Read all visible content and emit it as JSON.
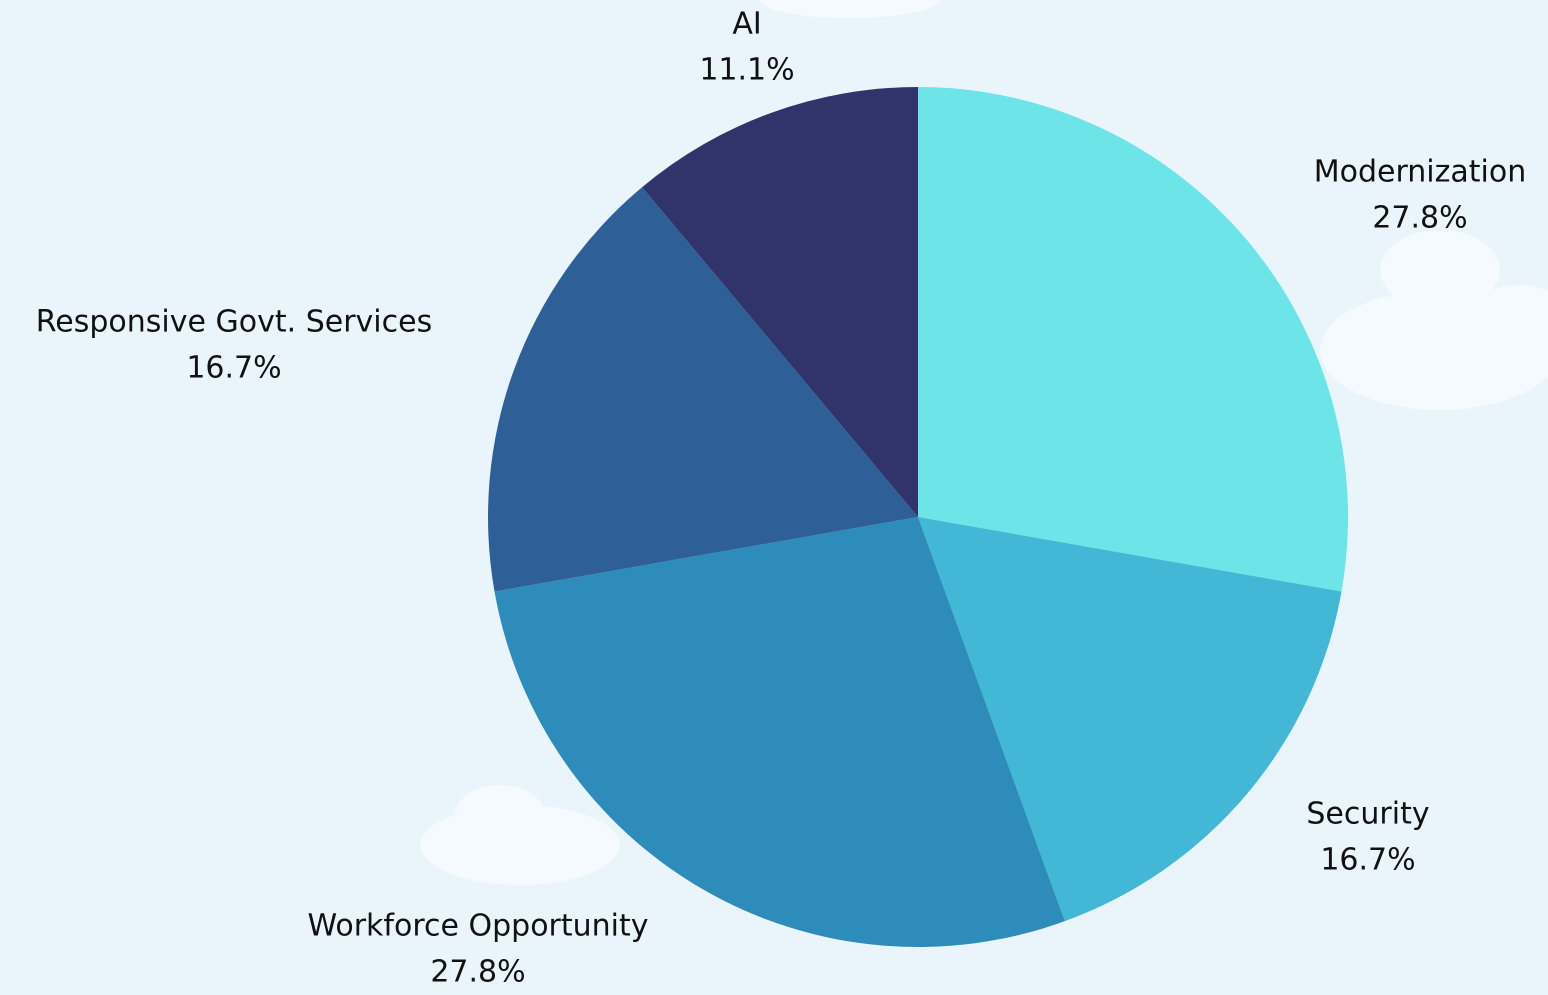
{
  "chart_data": {
    "type": "pie",
    "categories": [
      "Modernization",
      "Security",
      "Workforce Opportunity",
      "Responsive Govt. Services",
      "AI"
    ],
    "values": [
      27.8,
      16.7,
      27.8,
      16.7,
      11.1
    ],
    "value_labels": [
      "27.8%",
      "16.7%",
      "27.8%",
      "16.7%",
      "11.1%"
    ],
    "colors": [
      "#6ce4e8",
      "#42b7d6",
      "#2d8cba",
      "#2e5f96",
      "#30346a"
    ]
  }
}
